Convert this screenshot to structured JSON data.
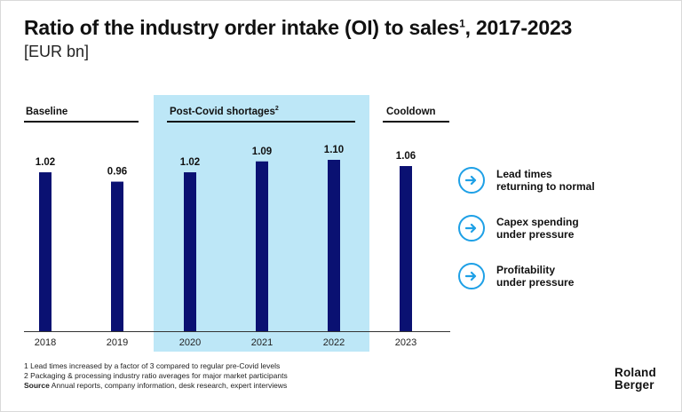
{
  "header": {
    "title": "Ratio of the industry order intake (OI) to sales",
    "title_sup": "1",
    "title_suffix": ", 2017-2023",
    "subtitle": "[EUR bn]"
  },
  "phases": [
    {
      "label": "Baseline",
      "sup": ""
    },
    {
      "label": "Post-Covid shortages",
      "sup": "2"
    },
    {
      "label": "Cooldown",
      "sup": ""
    }
  ],
  "chart_data": {
    "type": "bar",
    "categories": [
      "2018",
      "2019",
      "2020",
      "2021",
      "2022",
      "2023"
    ],
    "values": [
      1.02,
      0.96,
      1.02,
      1.09,
      1.1,
      1.06
    ],
    "value_labels": [
      "1.02",
      "0.96",
      "1.02",
      "1.09",
      "1.10",
      "1.06"
    ],
    "title": "Ratio of the industry order intake (OI) to sales, 2017-2023",
    "xlabel": "",
    "ylabel": "",
    "ylim": [
      0,
      1.15
    ],
    "grid": false,
    "highlighted_categories": [
      "2020",
      "2021",
      "2022"
    ]
  },
  "takeaways": [
    {
      "text": "Lead times\nreturning to normal",
      "icon": "arrow-right-icon"
    },
    {
      "text": "Capex spending\nunder pressure",
      "icon": "arrow-right-icon"
    },
    {
      "text": "Profitability\nunder pressure",
      "icon": "arrow-right-icon"
    }
  ],
  "footnotes": {
    "note1": "1 Lead times increased by a factor of 3 compared to regular pre-Covid levels",
    "note2": "2 Packaging & processing industry ratio averages for major market participants",
    "source_label": "Source",
    "source_text": " Annual reports, company information, desk research, expert interviews"
  },
  "logo": {
    "text": "Roland\nBerger"
  },
  "colors": {
    "bar": "#0a1172",
    "highlight": "#bde7f7",
    "accent": "#1ea0e6",
    "text": "#111111"
  }
}
